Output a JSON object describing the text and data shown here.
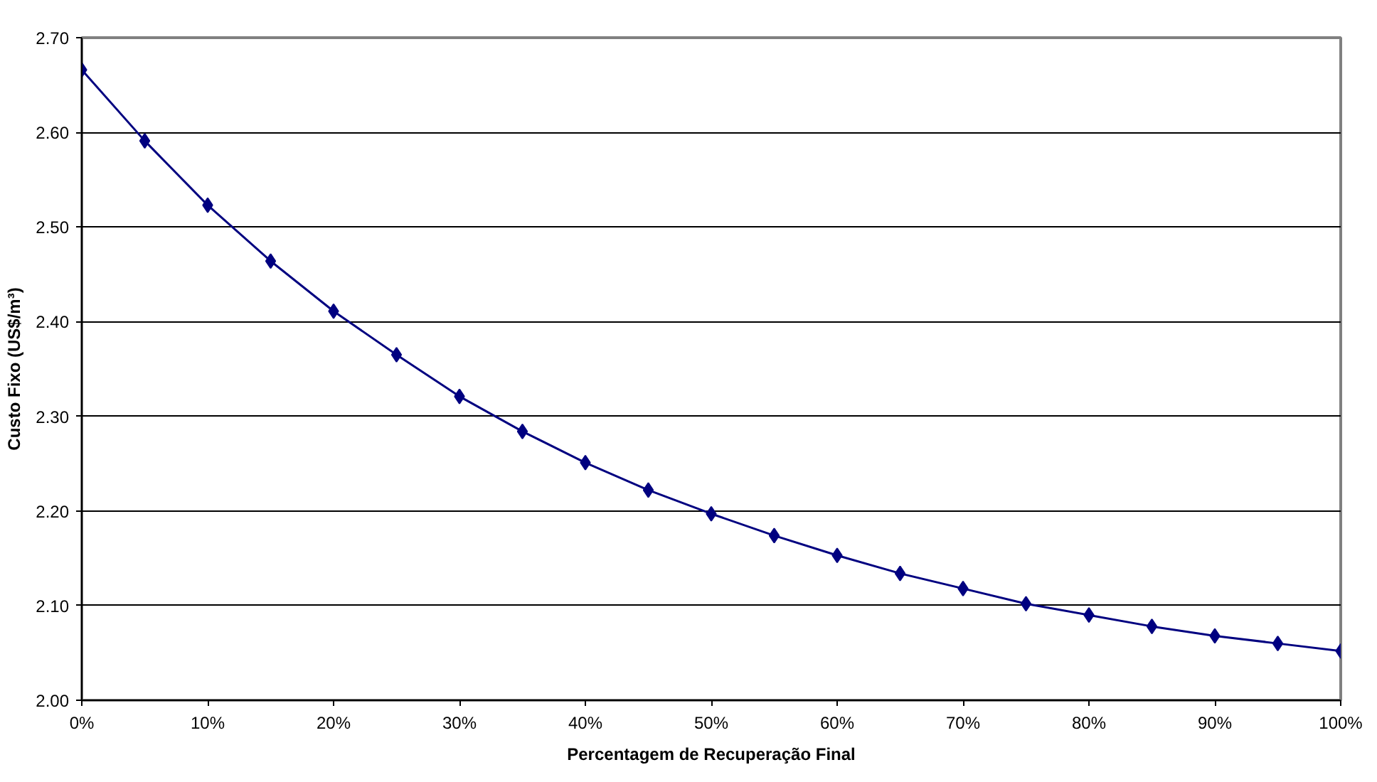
{
  "chart_data": {
    "type": "line",
    "xlabel": "Percentagem de Recuperação Final",
    "ylabel": "Custo Fixo (US$/m³)",
    "x": [
      0,
      5,
      10,
      15,
      20,
      25,
      30,
      35,
      40,
      45,
      50,
      55,
      60,
      65,
      70,
      75,
      80,
      85,
      90,
      95,
      100
    ],
    "series": [
      {
        "color": "#000080",
        "values": [
          2.666,
          2.591,
          2.523,
          2.464,
          2.411,
          2.365,
          2.321,
          2.284,
          2.251,
          2.222,
          2.197,
          2.174,
          2.153,
          2.134,
          2.118,
          2.102,
          2.09,
          2.078,
          2.068,
          2.06,
          2.052
        ]
      }
    ],
    "xlim": [
      0,
      100
    ],
    "xticks": [
      {
        "value": 0,
        "label": "0%"
      },
      {
        "value": 10,
        "label": "10%"
      },
      {
        "value": 20,
        "label": "20%"
      },
      {
        "value": 30,
        "label": "30%"
      },
      {
        "value": 40,
        "label": "40%"
      },
      {
        "value": 50,
        "label": "50%"
      },
      {
        "value": 60,
        "label": "60%"
      },
      {
        "value": 70,
        "label": "70%"
      },
      {
        "value": 80,
        "label": "80%"
      },
      {
        "value": 90,
        "label": "90%"
      },
      {
        "value": 100,
        "label": "100%"
      }
    ],
    "ylim": [
      2.0,
      2.7
    ],
    "yticks": [
      {
        "value": 2.0,
        "label": "2.00"
      },
      {
        "value": 2.1,
        "label": "2.10"
      },
      {
        "value": 2.2,
        "label": "2.20"
      },
      {
        "value": 2.3,
        "label": "2.30"
      },
      {
        "value": 2.4,
        "label": "2.40"
      },
      {
        "value": 2.5,
        "label": "2.50"
      },
      {
        "value": 2.6,
        "label": "2.60"
      },
      {
        "value": 2.7,
        "label": "2.70"
      }
    ],
    "grid": "y",
    "marker": "diamond",
    "line_style": "solid"
  }
}
